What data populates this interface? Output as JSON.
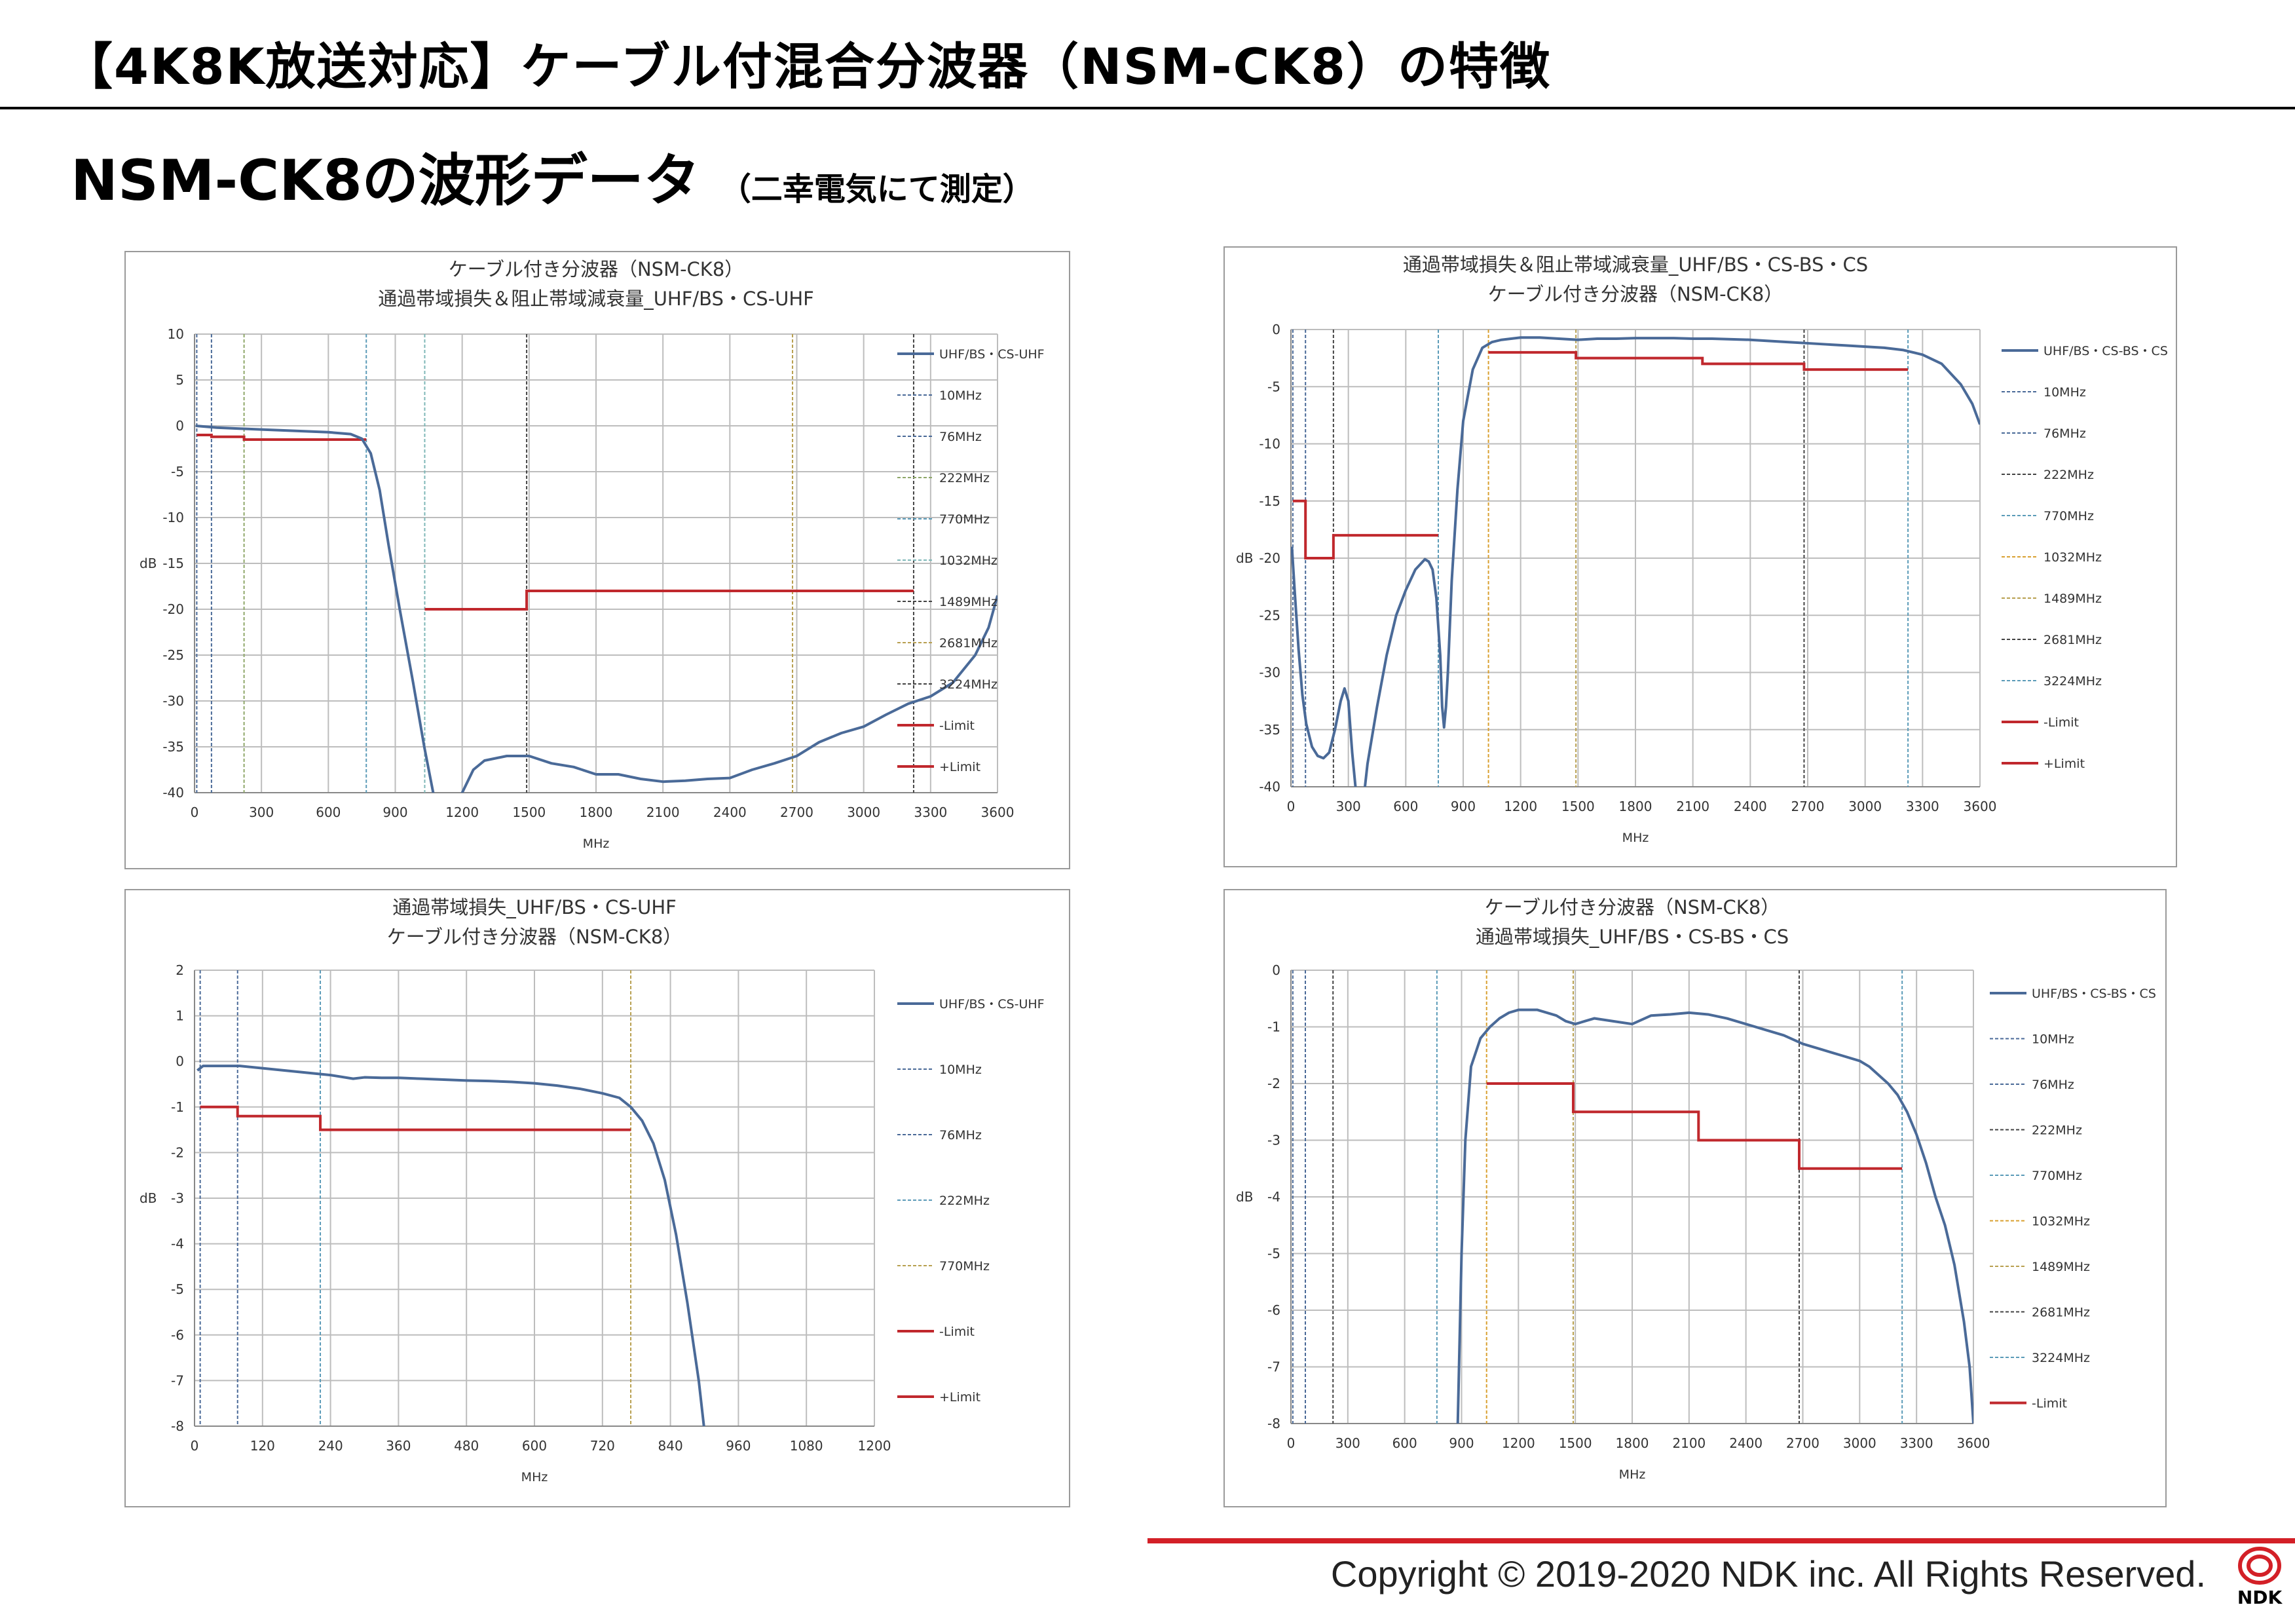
{
  "page": {
    "title": "【4K8K放送対応】ケーブル付混合分波器（NSM-CK8）の特徴",
    "subtitle": "NSM-CK8の波形データ",
    "subtitle_note": "（二幸電気にて測定）"
  },
  "footer": {
    "copyright": "Copyright © 2019-2020 NDK inc. All Rights Reserved.",
    "logo_text": "NDK"
  },
  "colors": {
    "signal": "#4a6a98",
    "limit": "#c0282d",
    "grid": "#bdbdbd",
    "accent_red": "#d32027"
  },
  "chart_data": [
    {
      "type": "line",
      "title": "ケーブル付き分波器（NSM-CK8）",
      "subtitle": "通過帯域損失＆阻止帯域減衰量_UHF/BS・CS-UHF",
      "xlabel": "MHz",
      "ylabel": "dB",
      "xlim": [
        0,
        3600
      ],
      "ylim": [
        -40,
        10
      ],
      "xticks": [
        0,
        300,
        600,
        900,
        1200,
        1500,
        1800,
        2100,
        2400,
        2700,
        3000,
        3300,
        3600
      ],
      "yticks": [
        10,
        5,
        0,
        -5,
        -10,
        -15,
        -20,
        -25,
        -30,
        -35,
        -40
      ],
      "legend_position": "right",
      "legend": [
        "UHF/BS・CS-UHF",
        "10MHz",
        "76MHz",
        "222MHz",
        "770MHz",
        "1032MHz",
        "1489MHz",
        "2681MHz",
        "3224MHz",
        "-Limit",
        "+Limit"
      ],
      "series": [
        {
          "name": "UHF/BS・CS-UHF",
          "color": "#4a6a98",
          "x": [
            5,
            100,
            200,
            300,
            400,
            500,
            600,
            700,
            750,
            790,
            830,
            870,
            920,
            980,
            1030,
            1070,
            1110,
            1150,
            1200,
            1250,
            1300,
            1400,
            1500,
            1600,
            1700,
            1800,
            1900,
            2000,
            2100,
            2200,
            2300,
            2400,
            2500,
            2600,
            2700,
            2800,
            2900,
            3000,
            3100,
            3200,
            3300,
            3400,
            3500,
            3560,
            3600
          ],
          "y": [
            0,
            -0.2,
            -0.3,
            -0.4,
            -0.5,
            -0.6,
            -0.7,
            -0.9,
            -1.4,
            -3,
            -7,
            -13,
            -20,
            -28,
            -35,
            -40,
            -44,
            -45,
            -40,
            -37.5,
            -36.5,
            -36,
            -36,
            -36.8,
            -37.2,
            -38,
            -38,
            -38.5,
            -38.8,
            -38.7,
            -38.5,
            -38.4,
            -37.5,
            -36.8,
            -36,
            -34.5,
            -33.5,
            -32.8,
            -31.5,
            -30.3,
            -29.5,
            -28,
            -25,
            -22,
            -18.5
          ]
        }
      ],
      "limits": [
        {
          "name": "-Limit",
          "color": "#c0282d",
          "segments": [
            [
              10,
              76,
              -1
            ],
            [
              76,
              222,
              -1.2
            ],
            [
              222,
              770,
              -1.5
            ]
          ]
        },
        {
          "name": "+Limit",
          "color": "#c0282d",
          "segments": [
            [
              1032,
              1489,
              -20
            ],
            [
              1489,
              3224,
              -18
            ]
          ]
        }
      ],
      "markers": [
        {
          "name": "10MHz",
          "x": 10,
          "color": "#4a6a98"
        },
        {
          "name": "76MHz",
          "x": 76,
          "color": "#4a6a98"
        },
        {
          "name": "222MHz",
          "x": 222,
          "color": "#8fa86a"
        },
        {
          "name": "770MHz",
          "x": 770,
          "color": "#5b9bb8"
        },
        {
          "name": "1032MHz",
          "x": 1032,
          "color": "#7fb8b8"
        },
        {
          "name": "1489MHz",
          "x": 1489,
          "color": "#444444"
        },
        {
          "name": "2681MHz",
          "x": 2681,
          "color": "#b8a050"
        },
        {
          "name": "3224MHz",
          "x": 3224,
          "color": "#444444"
        }
      ]
    },
    {
      "type": "line",
      "title": "通過帯域損失＆阻止帯域減衰量_UHF/BS・CS-BS・CS",
      "subtitle": "ケーブル付き分波器（NSM-CK8）",
      "xlabel": "MHz",
      "ylabel": "dB",
      "xlim": [
        0,
        3600
      ],
      "ylim": [
        -40,
        0
      ],
      "xticks": [
        0,
        300,
        600,
        900,
        1200,
        1500,
        1800,
        2100,
        2400,
        2700,
        3000,
        3300,
        3600
      ],
      "yticks": [
        0,
        -5,
        -10,
        -15,
        -20,
        -25,
        -30,
        -35,
        -40
      ],
      "legend_position": "right",
      "legend": [
        "UHF/BS・CS-BS・CS",
        "10MHz",
        "76MHz",
        "222MHz",
        "770MHz",
        "1032MHz",
        "1489MHz",
        "2681MHz",
        "3224MHz",
        "-Limit",
        "+Limit"
      ],
      "series": [
        {
          "name": "UHF/BS・CS-BS・CS",
          "color": "#4a6a98",
          "x": [
            5,
            20,
            40,
            60,
            80,
            110,
            140,
            170,
            200,
            230,
            260,
            280,
            300,
            320,
            340,
            360,
            400,
            450,
            500,
            550,
            600,
            650,
            700,
            720,
            740,
            760,
            780,
            790,
            800,
            810,
            820,
            840,
            870,
            900,
            950,
            1000,
            1050,
            1100,
            1200,
            1300,
            1400,
            1500,
            1600,
            1700,
            1800,
            1900,
            2000,
            2100,
            2200,
            2300,
            2400,
            2500,
            2600,
            2700,
            2800,
            2900,
            3000,
            3100,
            3200,
            3300,
            3400,
            3500,
            3560,
            3600
          ],
          "y": [
            -19,
            -23,
            -28,
            -32,
            -34.5,
            -36.5,
            -37.3,
            -37.5,
            -37,
            -35,
            -32.5,
            -31.4,
            -32.5,
            -37,
            -40.5,
            -44,
            -38,
            -33,
            -28.5,
            -25,
            -22.8,
            -21,
            -20.1,
            -20.3,
            -21,
            -23.5,
            -28.5,
            -33,
            -34.8,
            -33,
            -30,
            -22,
            -14,
            -8,
            -3.5,
            -1.6,
            -1.1,
            -0.9,
            -0.7,
            -0.7,
            -0.8,
            -0.9,
            -0.8,
            -0.8,
            -0.75,
            -0.75,
            -0.75,
            -0.8,
            -0.8,
            -0.85,
            -0.9,
            -1.0,
            -1.1,
            -1.2,
            -1.3,
            -1.4,
            -1.5,
            -1.6,
            -1.8,
            -2.2,
            -3.0,
            -4.8,
            -6.5,
            -8.3
          ]
        }
      ],
      "limits": [
        {
          "name": "-Limit",
          "color": "#c0282d",
          "segments": [
            [
              1032,
              1489,
              -2
            ],
            [
              1489,
              2150,
              -2.5
            ],
            [
              2150,
              2681,
              -3
            ],
            [
              2681,
              3224,
              -3.5
            ]
          ]
        },
        {
          "name": "+Limit",
          "color": "#c0282d",
          "segments": [
            [
              10,
              76,
              -15
            ],
            [
              76,
              222,
              -20
            ],
            [
              222,
              770,
              -18
            ]
          ]
        }
      ],
      "markers": [
        {
          "name": "10MHz",
          "x": 10,
          "color": "#4a6a98"
        },
        {
          "name": "76MHz",
          "x": 76,
          "color": "#4a6a98"
        },
        {
          "name": "222MHz",
          "x": 222,
          "color": "#444444"
        },
        {
          "name": "770MHz",
          "x": 770,
          "color": "#5b9bb8"
        },
        {
          "name": "1032MHz",
          "x": 1032,
          "color": "#d9a030"
        },
        {
          "name": "1489MHz",
          "x": 1489,
          "color": "#b8a050"
        },
        {
          "name": "2681MHz",
          "x": 2681,
          "color": "#444444"
        },
        {
          "name": "3224MHz",
          "x": 3224,
          "color": "#5b9bb8"
        }
      ]
    },
    {
      "type": "line",
      "title": "通過帯域損失_UHF/BS・CS-UHF",
      "subtitle": "ケーブル付き分波器（NSM-CK8）",
      "xlabel": "MHz",
      "ylabel": "dB",
      "xlim": [
        0,
        1200
      ],
      "ylim": [
        -8,
        2
      ],
      "xticks": [
        0,
        120,
        240,
        360,
        480,
        600,
        720,
        840,
        960,
        1080,
        1200
      ],
      "yticks": [
        2,
        1,
        0,
        -1,
        -2,
        -3,
        -4,
        -5,
        -6,
        -7,
        -8
      ],
      "legend_position": "right",
      "legend": [
        "UHF/BS・CS-UHF",
        "10MHz",
        "76MHz",
        "222MHz",
        "770MHz",
        "-Limit",
        "+Limit"
      ],
      "series": [
        {
          "name": "UHF/BS・CS-UHF",
          "color": "#4a6a98",
          "x": [
            5,
            15,
            40,
            80,
            120,
            160,
            200,
            240,
            280,
            300,
            330,
            360,
            400,
            440,
            480,
            520,
            560,
            600,
            640,
            680,
            720,
            750,
            770,
            790,
            810,
            830,
            850,
            870,
            890,
            900
          ],
          "y": [
            -0.2,
            -0.1,
            -0.1,
            -0.1,
            -0.15,
            -0.2,
            -0.25,
            -0.3,
            -0.38,
            -0.35,
            -0.36,
            -0.36,
            -0.38,
            -0.4,
            -0.42,
            -0.43,
            -0.45,
            -0.48,
            -0.53,
            -0.6,
            -0.7,
            -0.8,
            -1.0,
            -1.3,
            -1.8,
            -2.6,
            -3.8,
            -5.3,
            -7.0,
            -8.1
          ]
        }
      ],
      "limits": [
        {
          "name": "-Limit",
          "color": "#c0282d",
          "segments": [
            [
              10,
              76,
              -1
            ],
            [
              76,
              222,
              -1.2
            ],
            [
              222,
              770,
              -1.5
            ]
          ]
        }
      ],
      "markers": [
        {
          "name": "10MHz",
          "x": 10,
          "color": "#4a6a98"
        },
        {
          "name": "76MHz",
          "x": 76,
          "color": "#4a6a98"
        },
        {
          "name": "222MHz",
          "x": 222,
          "color": "#5b9bb8"
        },
        {
          "name": "770MHz",
          "x": 770,
          "color": "#b8a050"
        }
      ]
    },
    {
      "type": "line",
      "title": "ケーブル付き分波器（NSM-CK8）",
      "subtitle": "通過帯域損失_UHF/BS・CS-BS・CS",
      "xlabel": "MHz",
      "ylabel": "dB",
      "xlim": [
        0,
        3600
      ],
      "ylim": [
        -8,
        0
      ],
      "xticks": [
        0,
        300,
        600,
        900,
        1200,
        1500,
        1800,
        2100,
        2400,
        2700,
        3000,
        3300,
        3600
      ],
      "yticks": [
        0,
        -1,
        -2,
        -3,
        -4,
        -5,
        -6,
        -7,
        -8
      ],
      "legend_position": "right",
      "legend": [
        "UHF/BS・CS-BS・CS",
        "10MHz",
        "76MHz",
        "222MHz",
        "770MHz",
        "1032MHz",
        "1489MHz",
        "2681MHz",
        "3224MHz",
        "-Limit"
      ],
      "series": [
        {
          "name": "UHF/BS・CS-BS・CS",
          "color": "#4a6a98",
          "x": [
            880,
            900,
            920,
            950,
            1000,
            1050,
            1100,
            1150,
            1200,
            1300,
            1400,
            1450,
            1500,
            1550,
            1600,
            1700,
            1800,
            1900,
            2000,
            2100,
            2200,
            2300,
            2400,
            2500,
            2600,
            2700,
            2800,
            2900,
            3000,
            3050,
            3100,
            3150,
            3200,
            3250,
            3300,
            3350,
            3400,
            3450,
            3500,
            3550,
            3580,
            3600
          ],
          "y": [
            -8,
            -5,
            -3,
            -1.7,
            -1.2,
            -1.0,
            -0.85,
            -0.75,
            -0.7,
            -0.7,
            -0.8,
            -0.9,
            -0.95,
            -0.9,
            -0.85,
            -0.9,
            -0.95,
            -0.8,
            -0.78,
            -0.75,
            -0.78,
            -0.85,
            -0.95,
            -1.05,
            -1.15,
            -1.3,
            -1.4,
            -1.5,
            -1.6,
            -1.7,
            -1.85,
            -2.0,
            -2.2,
            -2.5,
            -2.9,
            -3.4,
            -4.0,
            -4.5,
            -5.2,
            -6.2,
            -7.0,
            -8.0
          ]
        }
      ],
      "limits": [
        {
          "name": "-Limit",
          "color": "#c0282d",
          "segments": [
            [
              1032,
              1489,
              -2
            ],
            [
              1489,
              2150,
              -2.5
            ],
            [
              2150,
              2681,
              -3
            ],
            [
              2681,
              3224,
              -3.5
            ]
          ]
        }
      ],
      "markers": [
        {
          "name": "10MHz",
          "x": 10,
          "color": "#4a6a98"
        },
        {
          "name": "76MHz",
          "x": 76,
          "color": "#4a6a98"
        },
        {
          "name": "222MHz",
          "x": 222,
          "color": "#444444"
        },
        {
          "name": "770MHz",
          "x": 770,
          "color": "#5b9bb8"
        },
        {
          "name": "1032MHz",
          "x": 1032,
          "color": "#d9a030"
        },
        {
          "name": "1489MHz",
          "x": 1489,
          "color": "#b8a050"
        },
        {
          "name": "2681MHz",
          "x": 2681,
          "color": "#444444"
        },
        {
          "name": "3224MHz",
          "x": 3224,
          "color": "#5b9bb8"
        }
      ]
    }
  ]
}
